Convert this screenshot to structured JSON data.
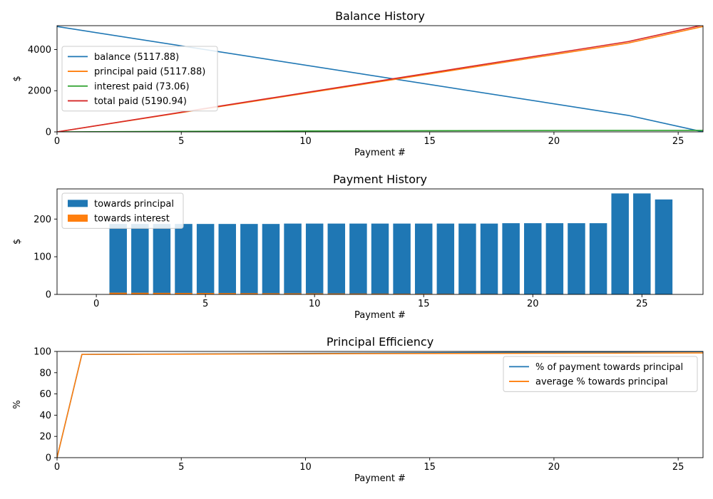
{
  "chart_data": [
    {
      "type": "line",
      "title": "Balance History",
      "xlabel": "Payment #",
      "ylabel": "$",
      "xlim": [
        0,
        26
      ],
      "ylim": [
        0,
        5160
      ],
      "xticks": [
        0,
        5,
        10,
        15,
        20,
        25
      ],
      "yticks": [
        0,
        2000,
        4000
      ],
      "legend": "upper-left",
      "series": [
        {
          "name": "balance (5117.88)",
          "color": "#1f77b4",
          "x": [
            0,
            23,
            26
          ],
          "y": [
            5117.88,
            800,
            0
          ]
        },
        {
          "name": "principal paid (5117.88)",
          "color": "#ff7f0e",
          "x": [
            0,
            23,
            26
          ],
          "y": [
            0,
            4317.88,
            5117.88
          ]
        },
        {
          "name": "interest paid (73.06)",
          "color": "#2ca02c",
          "x": [
            0,
            10,
            20,
            26
          ],
          "y": [
            0,
            45,
            68,
            73.06
          ]
        },
        {
          "name": "total paid (5190.94)",
          "color": "#d62728",
          "x": [
            0,
            23,
            26
          ],
          "y": [
            0,
            4390,
            5190.94
          ]
        }
      ]
    },
    {
      "type": "bar",
      "title": "Payment History",
      "xlabel": "Payment #",
      "ylabel": "$",
      "xlim": [
        -1.8,
        27.8
      ],
      "ylim": [
        0,
        280
      ],
      "xticks": [
        0,
        5,
        10,
        15,
        20,
        25
      ],
      "yticks": [
        0,
        100,
        200
      ],
      "legend": "upper-left",
      "categories": [
        1,
        2,
        3,
        4,
        5,
        6,
        7,
        8,
        9,
        10,
        11,
        12,
        13,
        14,
        15,
        16,
        17,
        18,
        19,
        20,
        21,
        22,
        23,
        24,
        25,
        26
      ],
      "series": [
        {
          "name": "towards principal",
          "color": "#1f77b4",
          "values": [
            187,
            187,
            187,
            187,
            187,
            187,
            187,
            187,
            188,
            188,
            188,
            188,
            188,
            188,
            188,
            188,
            188,
            188,
            189,
            189,
            189,
            189,
            189,
            268,
            268,
            252
          ]
        },
        {
          "name": "towards interest",
          "color": "#ff7f0e",
          "values": [
            4.5,
            4.3,
            4.1,
            3.9,
            3.7,
            3.5,
            3.3,
            3.1,
            2.9,
            2.7,
            2.5,
            2.3,
            2.1,
            1.9,
            1.7,
            1.5,
            1.3,
            1.1,
            0.9,
            0.7,
            0.6,
            0.5,
            0.4,
            0.3,
            0.2,
            0.1
          ]
        }
      ]
    },
    {
      "type": "line",
      "title": "Principal Efficiency",
      "xlabel": "Payment #",
      "ylabel": "%",
      "xlim": [
        0,
        26
      ],
      "ylim": [
        0,
        100
      ],
      "xticks": [
        0,
        5,
        10,
        15,
        20,
        25
      ],
      "yticks": [
        0,
        20,
        40,
        60,
        80,
        100
      ],
      "legend": "upper-right",
      "series": [
        {
          "name": "% of payment towards principal",
          "color": "#1f77b4",
          "x": [
            0,
            1,
            10,
            20,
            26
          ],
          "y": [
            0,
            97.2,
            98.2,
            99.3,
            99.9
          ]
        },
        {
          "name": "average % towards principal",
          "color": "#ff7f0e",
          "x": [
            0,
            1,
            10,
            20,
            26
          ],
          "y": [
            0,
            97.2,
            97.8,
            98.3,
            98.6
          ]
        }
      ]
    }
  ]
}
